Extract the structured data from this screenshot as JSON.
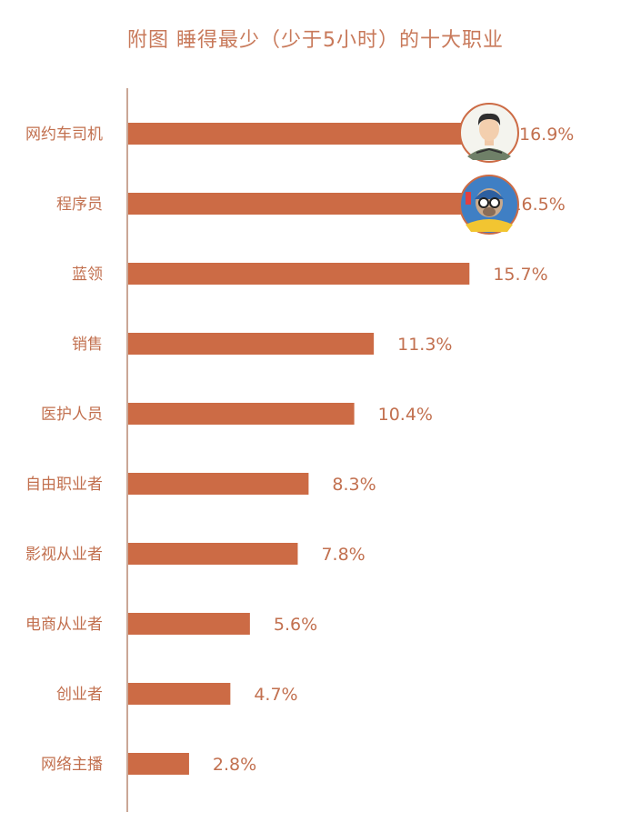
{
  "chart_data": {
    "type": "bar",
    "orientation": "horizontal",
    "title": "附图  睡得最少（少于5小时）的十大职业",
    "categories": [
      "网约车司机",
      "程序员",
      "蓝领",
      "销售",
      "医护人员",
      "自由职业者",
      "影视从业者",
      "电商从业者",
      "创业者",
      "网络主播"
    ],
    "values": [
      16.9,
      16.5,
      15.7,
      11.3,
      10.4,
      8.3,
      7.8,
      5.6,
      4.7,
      2.8
    ],
    "value_labels": [
      "16.9%",
      "16.5%",
      "15.7%",
      "11.3%",
      "10.4%",
      "8.3%",
      "7.8%",
      "5.6%",
      "4.7%",
      "2.8%"
    ],
    "xlim": [
      0,
      16.9
    ],
    "grid": false,
    "bar_color": "#cc6b45",
    "text_color": "#c2704f",
    "avatars": [
      {
        "category": "网约车司机",
        "icon": "driver-avatar-icon"
      },
      {
        "category": "程序员",
        "icon": "programmer-avatar-icon"
      }
    ]
  }
}
